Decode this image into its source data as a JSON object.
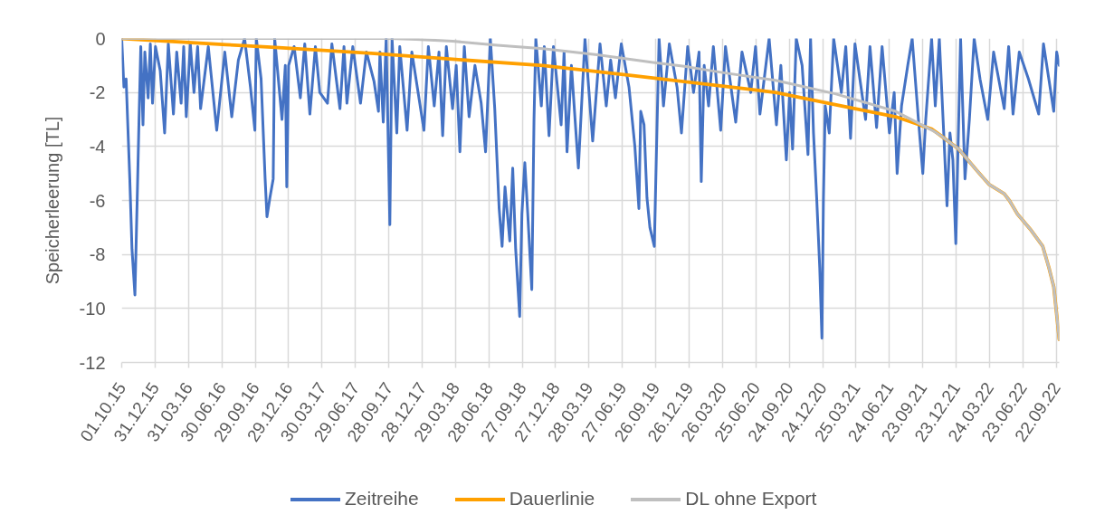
{
  "chart_data": {
    "type": "line",
    "ylabel": "Speicherleerung [TL]",
    "xlim": [
      "2015-10-01",
      "2022-09-30"
    ],
    "ylim": [
      -12,
      0
    ],
    "yticks": [
      -12,
      -10,
      -8,
      -6,
      -4,
      -2,
      0
    ],
    "xticks": [
      {
        "value": "2015-10-01",
        "label": "01.10.15"
      },
      {
        "value": "2015-12-31",
        "label": "31.12.15"
      },
      {
        "value": "2016-03-31",
        "label": "31.03.16"
      },
      {
        "value": "2016-06-30",
        "label": "30.06.16"
      },
      {
        "value": "2016-09-29",
        "label": "29.09.16"
      },
      {
        "value": "2016-12-29",
        "label": "29.12.16"
      },
      {
        "value": "2017-03-30",
        "label": "30.03.17"
      },
      {
        "value": "2017-06-29",
        "label": "29.06.17"
      },
      {
        "value": "2017-09-28",
        "label": "28.09.17"
      },
      {
        "value": "2017-12-28",
        "label": "28.12.17"
      },
      {
        "value": "2018-03-29",
        "label": "29.03.18"
      },
      {
        "value": "2018-06-28",
        "label": "28.06.18"
      },
      {
        "value": "2018-09-27",
        "label": "27.09.18"
      },
      {
        "value": "2018-12-27",
        "label": "27.12.18"
      },
      {
        "value": "2019-03-28",
        "label": "28.03.19"
      },
      {
        "value": "2019-06-27",
        "label": "27.06.19"
      },
      {
        "value": "2019-09-26",
        "label": "26.09.19"
      },
      {
        "value": "2019-12-26",
        "label": "26.12.19"
      },
      {
        "value": "2020-03-26",
        "label": "26.03.20"
      },
      {
        "value": "2020-06-25",
        "label": "25.06.20"
      },
      {
        "value": "2020-09-24",
        "label": "24.09.20"
      },
      {
        "value": "2020-12-24",
        "label": "24.12.20"
      },
      {
        "value": "2021-03-25",
        "label": "25.03.21"
      },
      {
        "value": "2021-06-24",
        "label": "24.06.21"
      },
      {
        "value": "2021-09-23",
        "label": "23.09.21"
      },
      {
        "value": "2021-12-23",
        "label": "23.12.21"
      },
      {
        "value": "2022-03-24",
        "label": "24.03.22"
      },
      {
        "value": "2022-06-23",
        "label": "23.06.22"
      },
      {
        "value": "2022-09-22",
        "label": "22.09.22"
      }
    ],
    "grid": true,
    "legend": "bottom",
    "series": [
      {
        "name": "Zeitreihe",
        "color": "#4472c4",
        "x": [
          "2015-10-01",
          "2015-10-07",
          "2015-10-13",
          "2015-10-23",
          "2015-10-29",
          "2015-11-06",
          "2015-11-13",
          "2015-11-17",
          "2015-11-22",
          "2015-11-28",
          "2015-12-03",
          "2015-12-12",
          "2015-12-18",
          "2015-12-24",
          "2016-01-01",
          "2016-01-14",
          "2016-01-26",
          "2016-02-05",
          "2016-02-19",
          "2016-02-28",
          "2016-03-11",
          "2016-03-18",
          "2016-03-25",
          "2016-04-05",
          "2016-04-15",
          "2016-04-25",
          "2016-05-03",
          "2016-05-24",
          "2016-06-16",
          "2016-07-08",
          "2016-07-27",
          "2016-08-14",
          "2016-08-31",
          "2016-09-16",
          "2016-09-28",
          "2016-10-02",
          "2016-10-15",
          "2016-10-26",
          "2016-10-31",
          "2016-11-08",
          "2016-11-17",
          "2016-11-21",
          "2016-12-11",
          "2016-12-20",
          "2016-12-24",
          "2016-12-29",
          "2017-01-13",
          "2017-01-30",
          "2017-02-11",
          "2017-02-25",
          "2017-03-12",
          "2017-03-24",
          "2017-04-14",
          "2017-04-26",
          "2017-05-18",
          "2017-05-29",
          "2017-06-06",
          "2017-06-22",
          "2017-07-13",
          "2017-07-29",
          "2017-08-19",
          "2017-08-31",
          "2017-09-04",
          "2017-09-13",
          "2017-09-21",
          "2017-10-01",
          "2017-10-07",
          "2017-10-20",
          "2017-10-28",
          "2017-11-17",
          "2017-11-30",
          "2018-01-02",
          "2018-01-14",
          "2018-01-30",
          "2018-02-12",
          "2018-02-22",
          "2018-03-04",
          "2018-03-21",
          "2018-03-31",
          "2018-04-10",
          "2018-04-22",
          "2018-05-05",
          "2018-05-21",
          "2018-06-07",
          "2018-06-19",
          "2018-07-02",
          "2018-07-14",
          "2018-07-26",
          "2018-08-03",
          "2018-08-11",
          "2018-08-24",
          "2018-09-01",
          "2018-09-09",
          "2018-09-20",
          "2018-09-26",
          "2018-10-04",
          "2018-10-12",
          "2018-10-23",
          "2018-10-29",
          "2018-11-03",
          "2018-11-18",
          "2018-11-26",
          "2018-12-09",
          "2018-12-21",
          "2019-01-11",
          "2019-01-19",
          "2019-01-27",
          "2019-02-08",
          "2019-02-27",
          "2019-03-17",
          "2019-04-07",
          "2019-04-27",
          "2019-05-14",
          "2019-05-26",
          "2019-06-08",
          "2019-06-24",
          "2019-07-15",
          "2019-07-31",
          "2019-08-11",
          "2019-08-16",
          "2019-08-25",
          "2019-09-02",
          "2019-09-10",
          "2019-09-22",
          "2019-09-29",
          "2019-10-05",
          "2019-10-17",
          "2019-11-02",
          "2019-11-23",
          "2019-12-05",
          "2019-12-22",
          "2020-01-07",
          "2020-01-22",
          "2020-01-28",
          "2020-02-05",
          "2020-02-17",
          "2020-03-01",
          "2020-03-21",
          "2020-04-03",
          "2020-05-01",
          "2020-05-18",
          "2020-06-11",
          "2020-06-24",
          "2020-07-06",
          "2020-07-31",
          "2020-08-20",
          "2020-09-01",
          "2020-09-16",
          "2020-09-25",
          "2020-10-03",
          "2020-10-13",
          "2020-10-29",
          "2020-11-14",
          "2020-11-21",
          "2020-11-29",
          "2020-12-08",
          "2020-12-16",
          "2020-12-22",
          "2020-12-26",
          "2020-12-31",
          "2021-01-11",
          "2021-01-23",
          "2021-02-13",
          "2021-02-25",
          "2021-03-10",
          "2021-03-22",
          "2021-04-20",
          "2021-05-02",
          "2021-05-20",
          "2021-06-04",
          "2021-06-24",
          "2021-07-07",
          "2021-07-15",
          "2021-07-27",
          "2021-08-13",
          "2021-08-25",
          "2021-09-11",
          "2021-09-23",
          "2021-10-01",
          "2021-10-17",
          "2021-10-27",
          "2021-11-07",
          "2021-11-19",
          "2021-11-28",
          "2021-12-06",
          "2021-12-14",
          "2021-12-22",
          "2022-01-04",
          "2022-01-16",
          "2022-01-28",
          "2022-02-10",
          "2022-02-26",
          "2022-03-19",
          "2022-04-04",
          "2022-05-03",
          "2022-05-15",
          "2022-05-27",
          "2022-06-13",
          "2022-07-08",
          "2022-08-05",
          "2022-08-18",
          "2022-09-15",
          "2022-09-23",
          "2022-09-30"
        ],
        "values": [
          0,
          -1.8,
          -1.5,
          -5.2,
          -7.8,
          -9.5,
          -5.5,
          -3.1,
          -0.3,
          -3.2,
          -0.5,
          -2.2,
          -0.2,
          -2.4,
          -0.3,
          -1.2,
          -3.5,
          -0.2,
          -2.8,
          -0.5,
          -2.4,
          -0.3,
          -2.9,
          -0.2,
          -2.0,
          -0.3,
          -2.6,
          -0.3,
          -3.4,
          -0.5,
          -2.9,
          -0.8,
          0,
          -1.8,
          -3.4,
          0,
          -1.5,
          -5.2,
          -6.6,
          -5.9,
          -5.2,
          0,
          -3.0,
          -1.0,
          -5.5,
          -1.0,
          -0.3,
          -2.2,
          -0.2,
          -2.8,
          -0.3,
          -2.0,
          -2.4,
          -0.2,
          -2.6,
          -0.3,
          -2.4,
          -0.3,
          -2.4,
          -0.5,
          -1.6,
          -2.7,
          -0.5,
          -3.1,
          0,
          -6.9,
          0,
          -3.5,
          -0.3,
          -3.4,
          -0.5,
          -3.4,
          -0.3,
          -2.5,
          -0.5,
          -3.6,
          -0.3,
          -2.6,
          -1.0,
          -4.2,
          -0.3,
          -2.9,
          -1.0,
          -2.4,
          -4.2,
          0,
          -2.6,
          -6.3,
          -7.7,
          -5.5,
          -7.5,
          -4.8,
          -7.8,
          -10.3,
          -6.5,
          -4.6,
          -6.5,
          -9.3,
          -3.0,
          0,
          -2.5,
          -0.3,
          -3.6,
          -0.3,
          -3.2,
          -0.5,
          -4.2,
          -1.0,
          -4.8,
          0,
          -3.8,
          -0.2,
          -2.5,
          -0.8,
          -2.2,
          -0.2,
          -1.8,
          -4.0,
          -6.3,
          -2.7,
          -3.2,
          -5.9,
          -7.0,
          -7.7,
          -3.5,
          0,
          -2.5,
          -0.2,
          -1.8,
          -3.5,
          -0.3,
          -2.0,
          -0.5,
          -5.3,
          -1.0,
          -2.5,
          -0.3,
          -3.4,
          -0.3,
          -3.1,
          -0.5,
          -2.0,
          -0.3,
          -2.8,
          0,
          -3.2,
          -1.0,
          -4.5,
          -2.0,
          -4.1,
          0,
          -1.0,
          -4.3,
          0,
          -3.5,
          -6.0,
          -8.5,
          -11.1,
          -6.0,
          -2.5,
          -3.5,
          0,
          -2.0,
          -0.3,
          -3.7,
          -0.2,
          -3.0,
          -0.3,
          -3.3,
          -0.3,
          -3.5,
          -2.0,
          -5.0,
          -2.5,
          -1.0,
          0,
          -3.0,
          -5.0,
          -3.0,
          0,
          -2.5,
          0,
          -3.5,
          -6.2,
          -3.5,
          -4.5,
          -7.6,
          0,
          -5.2,
          -3.0,
          0,
          -1.5,
          -3.0,
          -0.5,
          -2.6,
          -0.3,
          -2.8,
          -0.5,
          -1.5,
          -2.8,
          -0.2,
          -2.7,
          -0.5,
          -1.0
        ]
      },
      {
        "name": "Dauerlinie",
        "color": "#ffa000",
        "x": [
          "2015-10-01",
          "2016-07-12",
          "2016-11-12",
          "2017-08-11",
          "2018-03-21",
          "2018-11-22",
          "2019-07-27",
          "2020-05-18",
          "2020-08-17",
          "2021-01-27",
          "2021-07-11",
          "2021-10-17",
          "2021-11-11",
          "2021-12-30",
          "2022-02-18",
          "2022-03-22",
          "2022-05-03",
          "2022-05-17",
          "2022-06-08",
          "2022-07-15",
          "2022-08-16",
          "2022-09-02",
          "2022-09-15",
          "2022-09-22",
          "2022-09-30"
        ],
        "values": [
          0,
          -0.23,
          -0.32,
          -0.55,
          -0.77,
          -1.0,
          -1.38,
          -1.85,
          -2.0,
          -2.45,
          -2.9,
          -3.35,
          -3.6,
          -4.1,
          -4.9,
          -5.4,
          -5.75,
          -6.0,
          -6.5,
          -7.1,
          -7.7,
          -8.5,
          -9.2,
          -10.1,
          -11.15
        ]
      },
      {
        "name": "DL ohne Export",
        "color": "#bfbfbf",
        "x": [
          "2015-10-01",
          "2017-09-30",
          "2017-12-12",
          "2018-03-21",
          "2018-07-21",
          "2018-11-22",
          "2019-04-19",
          "2019-09-14",
          "2019-12-22",
          "2020-03-29",
          "2020-08-17",
          "2021-01-27",
          "2021-07-11",
          "2021-10-25",
          "2021-11-11",
          "2021-12-30",
          "2022-02-18",
          "2022-03-22",
          "2022-05-03",
          "2022-05-17",
          "2022-06-08",
          "2022-07-15",
          "2022-08-16",
          "2022-09-02",
          "2022-09-15",
          "2022-09-22",
          "2022-09-30"
        ],
        "values": [
          0,
          0,
          -0.03,
          -0.1,
          -0.25,
          -0.38,
          -0.6,
          -0.88,
          -1.05,
          -1.27,
          -1.55,
          -2.05,
          -2.7,
          -3.45,
          -3.6,
          -4.1,
          -4.9,
          -5.4,
          -5.75,
          -6.0,
          -6.5,
          -7.1,
          -7.7,
          -8.5,
          -9.2,
          -10.1,
          -11.15
        ]
      }
    ]
  }
}
